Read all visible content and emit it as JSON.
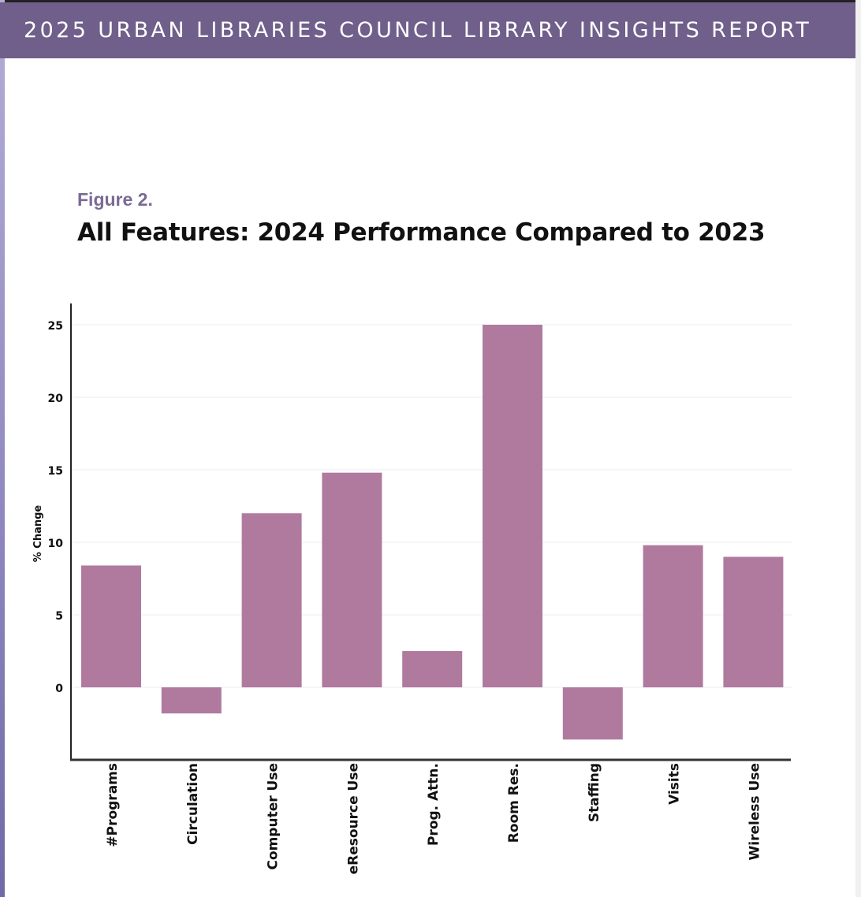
{
  "header": {
    "banner_title": "2025 URBAN LIBRARIES COUNCIL LIBRARY INSIGHTS REPORT"
  },
  "figure": {
    "label": "Figure 2.",
    "title": "All Features: 2024 Performance Compared to 2023"
  },
  "colors": {
    "banner": "#6f5f8a",
    "bar": "#b07a9f",
    "figure_label": "#7a6a93"
  },
  "chart_data": {
    "type": "bar",
    "categories": [
      "#Programs",
      "Circulation",
      "Computer Use",
      "eResource Use",
      "Prog. Attn.",
      "Room Res.",
      "Staffing",
      "Visits",
      "Wireless Use"
    ],
    "values": [
      8.4,
      -1.8,
      12.0,
      14.8,
      2.5,
      25.0,
      -3.6,
      9.8,
      9.0
    ],
    "title": "All Features: 2024 Performance Compared to 2023",
    "xlabel": "",
    "ylabel": "% Change",
    "yticks": [
      0,
      5,
      10,
      15,
      20,
      25
    ],
    "ylim": [
      -5,
      26.5
    ],
    "grid": true,
    "legend": "none"
  }
}
